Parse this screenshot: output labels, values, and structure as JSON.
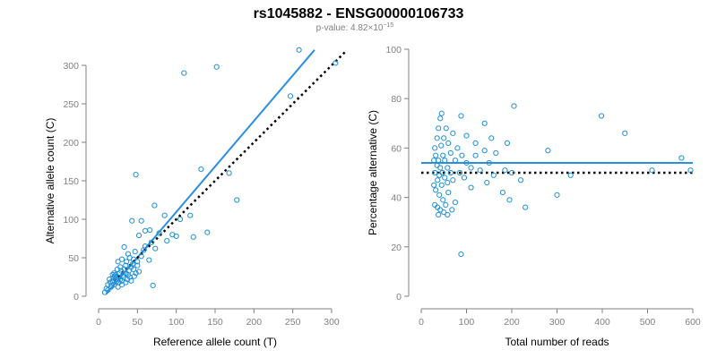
{
  "title": "rs1045882 - ENSG00000106733",
  "subtitle": {
    "prefix": "p-value: 4.82×10",
    "exponent": "−15"
  },
  "colors": {
    "points": "#1f8fd6",
    "fit": "#2b8fe0",
    "reference": "#000000",
    "axis": "#808080"
  },
  "chart_data": [
    {
      "type": "scatter",
      "title": "",
      "xlabel": "Reference allele count (T)",
      "ylabel": "Alternative allele count (C)",
      "xlim": [
        0,
        300
      ],
      "ylim": [
        0,
        300
      ],
      "xticks": [
        0,
        50,
        100,
        150,
        200,
        250,
        300
      ],
      "yticks": [
        0,
        50,
        100,
        150,
        200,
        250,
        300
      ],
      "grid": false,
      "points": [
        [
          258,
          320
        ],
        [
          152,
          298
        ],
        [
          110,
          290
        ],
        [
          305,
          303
        ],
        [
          247,
          260
        ],
        [
          132,
          165
        ],
        [
          168,
          160
        ],
        [
          48,
          158
        ],
        [
          178,
          125
        ],
        [
          72,
          118
        ],
        [
          85,
          105
        ],
        [
          105,
          100
        ],
        [
          118,
          105
        ],
        [
          55,
          98
        ],
        [
          43,
          98
        ],
        [
          95,
          80
        ],
        [
          60,
          85
        ],
        [
          66,
          86
        ],
        [
          78,
          82
        ],
        [
          140,
          83
        ],
        [
          100,
          78
        ],
        [
          122,
          77
        ],
        [
          88,
          72
        ],
        [
          52,
          79
        ],
        [
          73,
          62
        ],
        [
          58,
          60
        ],
        [
          47,
          58
        ],
        [
          33,
          64
        ],
        [
          38,
          55
        ],
        [
          40,
          50
        ],
        [
          45,
          48
        ],
        [
          50,
          45
        ],
        [
          30,
          48
        ],
        [
          25,
          45
        ],
        [
          35,
          40
        ],
        [
          42,
          38
        ],
        [
          65,
          47
        ],
        [
          55,
          52
        ],
        [
          28,
          38
        ],
        [
          20,
          30
        ],
        [
          22,
          28
        ],
        [
          25,
          25
        ],
        [
          28,
          22
        ],
        [
          30,
          20
        ],
        [
          32,
          25
        ],
        [
          35,
          30
        ],
        [
          18,
          20
        ],
        [
          15,
          18
        ],
        [
          12,
          15
        ],
        [
          16,
          12
        ],
        [
          20,
          15
        ],
        [
          25,
          12
        ],
        [
          30,
          15
        ],
        [
          22,
          22
        ],
        [
          38,
          28
        ],
        [
          40,
          25
        ],
        [
          45,
          35
        ],
        [
          48,
          30
        ],
        [
          27,
          30
        ],
        [
          14,
          22
        ],
        [
          18,
          28
        ],
        [
          10,
          10
        ],
        [
          8,
          5
        ],
        [
          12,
          8
        ],
        [
          35,
          18
        ],
        [
          42,
          20
        ],
        [
          26,
          18
        ],
        [
          33,
          35
        ],
        [
          70,
          14
        ],
        [
          50,
          40
        ],
        [
          60,
          65
        ],
        [
          68,
          70
        ],
        [
          36,
          45
        ],
        [
          24,
          35
        ],
        [
          44,
          42
        ],
        [
          52,
          32
        ],
        [
          19,
          24
        ],
        [
          29,
          33
        ],
        [
          37,
          22
        ],
        [
          23,
          19
        ],
        [
          17,
          14
        ],
        [
          31,
          27
        ],
        [
          39,
          33
        ],
        [
          46,
          26
        ],
        [
          21,
          26
        ]
      ],
      "lines": [
        {
          "name": "",
          "style": "solid",
          "color": "#2b8fe0",
          "x": [
            10,
            278
          ],
          "y": [
            3,
            320
          ]
        },
        {
          "name": "",
          "style": "dotted",
          "color": "#000000",
          "x": [
            20,
            318
          ],
          "y": [
            20,
            318
          ]
        }
      ]
    },
    {
      "type": "scatter",
      "title": "",
      "xlabel": "Total number of reads",
      "ylabel": "Percentage alternative (C)",
      "xlim": [
        0,
        600
      ],
      "ylim": [
        0,
        100
      ],
      "xticks": [
        0,
        100,
        200,
        300,
        400,
        500,
        600
      ],
      "yticks": [
        0,
        20,
        40,
        60,
        80,
        100
      ],
      "grid": false,
      "points": [
        [
          205,
          77
        ],
        [
          398,
          73
        ],
        [
          45,
          74
        ],
        [
          42,
          72
        ],
        [
          88,
          73
        ],
        [
          140,
          70
        ],
        [
          450,
          66
        ],
        [
          38,
          68
        ],
        [
          55,
          68
        ],
        [
          70,
          66
        ],
        [
          100,
          65
        ],
        [
          155,
          64
        ],
        [
          35,
          64
        ],
        [
          50,
          64
        ],
        [
          60,
          62
        ],
        [
          120,
          62
        ],
        [
          190,
          62
        ],
        [
          80,
          60
        ],
        [
          30,
          60
        ],
        [
          44,
          61
        ],
        [
          140,
          59
        ],
        [
          165,
          58
        ],
        [
          280,
          59
        ],
        [
          65,
          58
        ],
        [
          32,
          57
        ],
        [
          48,
          57
        ],
        [
          90,
          57
        ],
        [
          120,
          57
        ],
        [
          575,
          56
        ],
        [
          28,
          55
        ],
        [
          38,
          55
        ],
        [
          52,
          55
        ],
        [
          75,
          55
        ],
        [
          100,
          54
        ],
        [
          150,
          54
        ],
        [
          35,
          53
        ],
        [
          42,
          52
        ],
        [
          58,
          52
        ],
        [
          110,
          52
        ],
        [
          185,
          51
        ],
        [
          510,
          51
        ],
        [
          595,
          51
        ],
        [
          30,
          50
        ],
        [
          47,
          50
        ],
        [
          65,
          50
        ],
        [
          85,
          50
        ],
        [
          130,
          51
        ],
        [
          200,
          50
        ],
        [
          330,
          49
        ],
        [
          40,
          49
        ],
        [
          52,
          48
        ],
        [
          95,
          48
        ],
        [
          160,
          49
        ],
        [
          220,
          47
        ],
        [
          36,
          47
        ],
        [
          70,
          47
        ],
        [
          145,
          46
        ],
        [
          58,
          46
        ],
        [
          28,
          45
        ],
        [
          45,
          45
        ],
        [
          110,
          44
        ],
        [
          180,
          42
        ],
        [
          32,
          43
        ],
        [
          60,
          42
        ],
        [
          300,
          41
        ],
        [
          40,
          41
        ],
        [
          195,
          39
        ],
        [
          48,
          39
        ],
        [
          75,
          38
        ],
        [
          30,
          37
        ],
        [
          54,
          37
        ],
        [
          36,
          36
        ],
        [
          230,
          36
        ],
        [
          42,
          35
        ],
        [
          68,
          35
        ],
        [
          50,
          34
        ],
        [
          38,
          33
        ],
        [
          58,
          33
        ],
        [
          88,
          17
        ]
      ],
      "lines": [
        {
          "name": "",
          "style": "solid",
          "color": "#2b8fe0",
          "x": [
            0,
            600
          ],
          "y": [
            54,
            54
          ]
        },
        {
          "name": "",
          "style": "dotted",
          "color": "#000000",
          "x": [
            0,
            600
          ],
          "y": [
            50,
            50
          ]
        }
      ]
    }
  ]
}
